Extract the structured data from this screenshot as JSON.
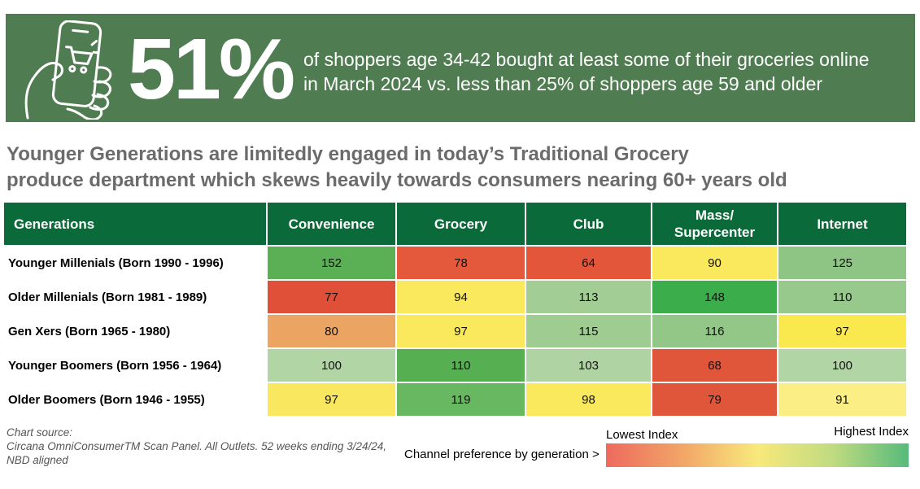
{
  "banner": {
    "stat": "51%",
    "description_line1": "of shoppers age 34-42 bought at least some of their groceries online",
    "description_line2": "in March 2024 vs. less than 25% of shoppers age 59 and older",
    "icon": "phone-shopping-icon"
  },
  "headline": {
    "line1": "Younger Generations are limitedly engaged in today’s Traditional Grocery",
    "line2": "produce department which skews heavily towards consumers nearing 60+ years old"
  },
  "chart_data": {
    "type": "heatmap",
    "row_header": "Generations",
    "columns": [
      "Convenience",
      "Grocery",
      "Club",
      "Mass/\nSupercenter",
      "Internet"
    ],
    "rows": [
      {
        "label": "Younger Millenials (Born 1990 - 1996)",
        "values": [
          152,
          78,
          64,
          90,
          125
        ],
        "colors": [
          "#5BAF55",
          "#E4583B",
          "#E3563A",
          "#FAE95C",
          "#8FC584"
        ]
      },
      {
        "label": "Older Millenials (Born 1981 - 1989)",
        "values": [
          77,
          94,
          113,
          148,
          110
        ],
        "colors": [
          "#E05038",
          "#FAE95C",
          "#A2CD95",
          "#3CAD4B",
          "#96C98B"
        ]
      },
      {
        "label": "Gen Xers (Born 1965 - 1980)",
        "values": [
          80,
          97,
          115,
          116,
          97
        ],
        "colors": [
          "#ECA462",
          "#FAE95C",
          "#9FCC91",
          "#93C788",
          "#FAE84F"
        ]
      },
      {
        "label": "Younger Boomers (Born 1956 - 1964)",
        "values": [
          100,
          110,
          103,
          68,
          100
        ],
        "colors": [
          "#B2D5A5",
          "#56B051",
          "#AFD3A2",
          "#E0563B",
          "#B2D5A5"
        ]
      },
      {
        "label": "Older Boomers (Born 1946 - 1955)",
        "values": [
          97,
          119,
          98,
          79,
          91
        ],
        "colors": [
          "#F8E75F",
          "#67B860",
          "#FAE95C",
          "#E0563B",
          "#FBEE85"
        ]
      }
    ],
    "legend": {
      "label": "Channel preference by generation >",
      "low": "Lowest Index",
      "high": "Highest Index",
      "gradient": [
        "#ED6A5E",
        "#F2A567",
        "#F8E97C",
        "#C0DB80",
        "#57BA7C"
      ]
    }
  },
  "footer": {
    "source_line1": "Chart source:",
    "source_line2": "Circana OmniConsumerTM Scan Panel. All Outlets. 52 weeks ending 3/24/24,",
    "source_line3": "NBD aligned"
  },
  "colors": {
    "banner_bg": "#4F7C50",
    "header_bg": "#0B6A39"
  }
}
